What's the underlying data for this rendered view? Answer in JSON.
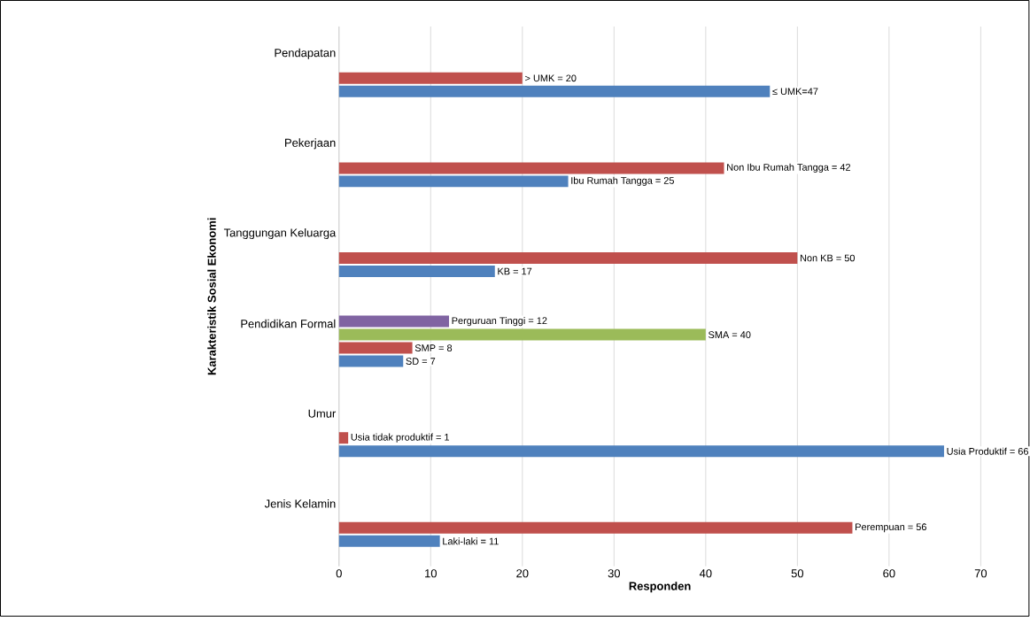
{
  "chart_data": {
    "type": "bar",
    "orientation": "horizontal",
    "xlabel": "Responden",
    "ylabel": "Karakteristik Sosial Ekonomi",
    "categories": [
      "Pendapatan",
      "Pekerjaan",
      "Tanggungan Keluarga",
      "Pendidikan Formal",
      "Umur",
      "Jenis Kelamin"
    ],
    "series": [
      {
        "color": "#4f81bd",
        "values": [
          47,
          25,
          17,
          7,
          66,
          11
        ],
        "value_labels": [
          "≤ UMK=47",
          "Ibu Rumah Tangga = 25",
          "KB = 17",
          "SD = 7",
          "Usia Produktif = 66",
          "Laki-laki = 11"
        ]
      },
      {
        "color": "#c0504d",
        "values": [
          20,
          42,
          50,
          8,
          1,
          56
        ],
        "value_labels": [
          "> UMK = 20",
          "Non Ibu Rumah Tangga = 42",
          "Non KB = 50",
          "SMP = 8",
          "Usia tidak produktif = 1",
          "Perempuan = 56"
        ]
      },
      {
        "color": "#9bbb59",
        "values": [
          null,
          null,
          null,
          40,
          null,
          null
        ],
        "value_labels": [
          null,
          null,
          null,
          "SMA = 40",
          null,
          null
        ]
      },
      {
        "color": "#8064a2",
        "values": [
          null,
          null,
          null,
          12,
          null,
          null
        ],
        "value_labels": [
          null,
          null,
          null,
          "Perguruan Tinggi = 12",
          null,
          null
        ]
      }
    ],
    "xlim": [
      0,
      70
    ],
    "xticks": [
      0,
      10,
      20,
      30,
      40,
      50,
      60,
      70
    ],
    "grid": "x"
  }
}
